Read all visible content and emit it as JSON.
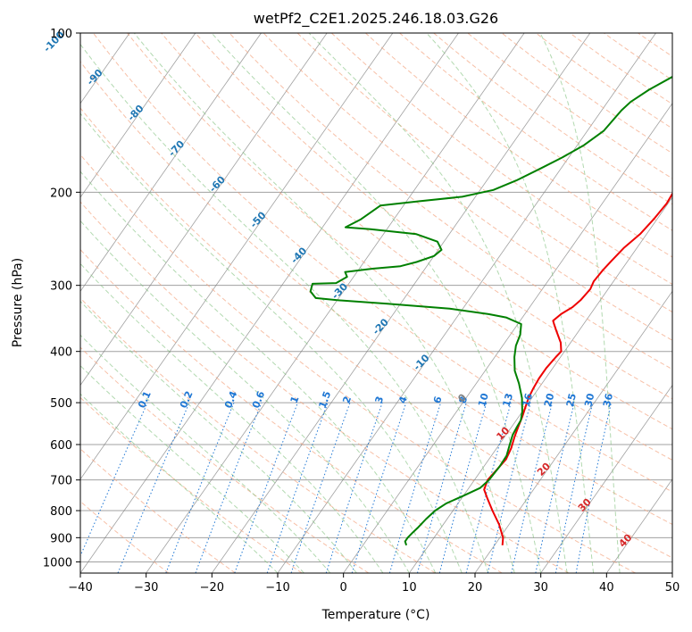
{
  "chart_data": {
    "type": "line",
    "title": "wetPf2_C2E1.2025.246.18.03.G26",
    "xlabel": "Temperature (°C)",
    "ylabel": "Pressure (hPa)",
    "xlim": [
      -40,
      50
    ],
    "ylim": [
      1050,
      100
    ],
    "y_scale": "log",
    "grid": true,
    "x_ticks": [
      -40,
      -30,
      -20,
      -10,
      0,
      10,
      20,
      30,
      40,
      50
    ],
    "y_ticks": [
      100,
      200,
      300,
      400,
      500,
      600,
      700,
      800,
      900,
      1000
    ],
    "series": [
      {
        "color": "#ee0000",
        "points": [
          [
            21.2,
            930
          ],
          [
            20.5,
            900
          ],
          [
            18.5,
            850
          ],
          [
            16.0,
            800
          ],
          [
            14.0,
            760
          ],
          [
            12.5,
            730
          ],
          [
            12.0,
            700
          ],
          [
            12.3,
            670
          ],
          [
            12.6,
            640
          ],
          [
            12.2,
            610
          ],
          [
            11.5,
            580
          ],
          [
            11.0,
            555
          ],
          [
            10.5,
            530
          ],
          [
            10.0,
            510
          ],
          [
            9.5,
            490
          ],
          [
            9.2,
            470
          ],
          [
            9.0,
            450
          ],
          [
            9.0,
            430
          ],
          [
            9.3,
            410
          ],
          [
            9.5,
            400
          ],
          [
            8.5,
            385
          ],
          [
            6.5,
            365
          ],
          [
            5.5,
            355
          ],
          [
            5.0,
            350
          ],
          [
            5.5,
            340
          ],
          [
            6.5,
            330
          ],
          [
            7.0,
            320
          ],
          [
            7.3,
            305
          ],
          [
            7.0,
            295
          ],
          [
            7.2,
            280
          ],
          [
            7.5,
            270
          ],
          [
            8.0,
            255
          ],
          [
            9.0,
            240
          ],
          [
            9.5,
            225
          ],
          [
            9.8,
            210
          ],
          [
            9.5,
            195
          ],
          [
            9.0,
            185
          ],
          [
            8.5,
            170
          ],
          [
            8.0,
            158
          ],
          [
            8.3,
            148
          ],
          [
            9.5,
            140
          ],
          [
            10.3,
            133
          ],
          [
            10.6,
            126
          ],
          [
            10.2,
            120
          ],
          [
            10.0,
            115
          ],
          [
            10.5,
            110
          ],
          [
            11.5,
            105
          ],
          [
            12.5,
            100
          ]
        ]
      },
      {
        "color": "#008000",
        "points": [
          [
            6.6,
            930
          ],
          [
            6.0,
            915
          ],
          [
            6.0,
            900
          ],
          [
            6.2,
            880
          ],
          [
            6.5,
            860
          ],
          [
            6.8,
            830
          ],
          [
            7.3,
            800
          ],
          [
            8.2,
            775
          ],
          [
            10.0,
            750
          ],
          [
            11.7,
            725
          ],
          [
            12.2,
            700
          ],
          [
            12.4,
            660
          ],
          [
            12.3,
            630
          ],
          [
            11.6,
            600
          ],
          [
            11.0,
            575
          ],
          [
            10.8,
            555
          ],
          [
            10.7,
            540
          ],
          [
            10.0,
            520
          ],
          [
            8.5,
            490
          ],
          [
            6.5,
            460
          ],
          [
            4.5,
            435
          ],
          [
            3.0,
            410
          ],
          [
            2.0,
            390
          ],
          [
            1.5,
            372
          ],
          [
            0.5,
            355
          ],
          [
            -2.5,
            345
          ],
          [
            -5.5,
            340
          ],
          [
            -12.0,
            332
          ],
          [
            -22.0,
            325
          ],
          [
            -30.0,
            320
          ],
          [
            -33.5,
            317
          ],
          [
            -35.0,
            308
          ],
          [
            -35.5,
            298
          ],
          [
            -32.0,
            297
          ],
          [
            -31.0,
            289
          ],
          [
            -31.8,
            283
          ],
          [
            -28.0,
            279
          ],
          [
            -24.0,
            276
          ],
          [
            -22.0,
            271
          ],
          [
            -20.0,
            264
          ],
          [
            -19.5,
            257
          ],
          [
            -21.0,
            248
          ],
          [
            -25.0,
            240
          ],
          [
            -32.5,
            235
          ],
          [
            -36.5,
            233
          ],
          [
            -35.0,
            225
          ],
          [
            -33.5,
            212
          ],
          [
            -28.0,
            208
          ],
          [
            -22.0,
            204
          ],
          [
            -18.0,
            198
          ],
          [
            -15.5,
            190
          ],
          [
            -13.0,
            180
          ],
          [
            -11.0,
            172
          ],
          [
            -9.0,
            163
          ],
          [
            -7.5,
            153
          ],
          [
            -7.0,
            140
          ],
          [
            -6.5,
            135
          ],
          [
            -5.0,
            128
          ],
          [
            -2.5,
            120
          ],
          [
            -0.5,
            112
          ],
          [
            0.8,
            106
          ],
          [
            2.0,
            100
          ]
        ]
      }
    ],
    "dry_adiabat_labels": [
      "-100",
      "-90",
      "-80",
      "-70",
      "-60",
      "-50",
      "-40",
      "-30",
      "-20",
      "-10",
      "0",
      "10",
      "20",
      "30",
      "40"
    ],
    "mixing_ratio_labels": [
      "0.1",
      "0.2",
      "0.4",
      "0.6",
      "1",
      "1.5",
      "2",
      "3",
      "4",
      "6",
      "8",
      "10",
      "13",
      "16",
      "20",
      "25",
      "30",
      "36"
    ],
    "colors": {
      "dry_adiabat": "#f4a582",
      "moist_adiabat": "#7fbf7b",
      "mixing_ratio": "#1f77d4",
      "isotherm": "#808080",
      "isobar": "#a0a0a0",
      "label_blue": "#1f77b4",
      "label_red": "#d62728",
      "label_gray": "#808080"
    }
  }
}
